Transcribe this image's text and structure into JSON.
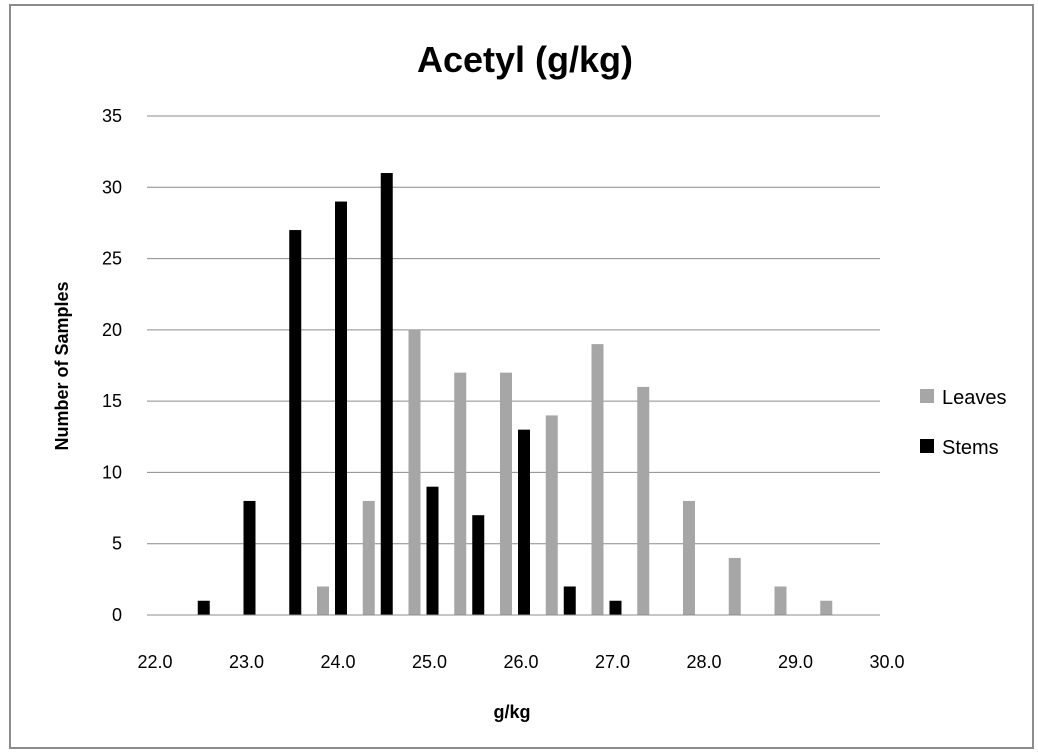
{
  "chart_data": {
    "type": "bar",
    "title": "Acetyl (g/kg)",
    "xlabel": "g/kg",
    "ylabel": "Number  of Samples",
    "ylim": [
      0,
      35
    ],
    "yticks": [
      "0",
      "5",
      "10",
      "15",
      "20",
      "25",
      "30",
      "35"
    ],
    "xlim": [
      22.0,
      30.0
    ],
    "xticks": [
      "22.0",
      "23.0",
      "24.0",
      "25.0",
      "26.0",
      "27.0",
      "28.0",
      "29.0",
      "30.0"
    ],
    "grid": "horizontal",
    "legend_position": "right",
    "series": [
      {
        "name": "Leaves",
        "color": "#a6a6a6",
        "x": [
          22.5,
          23.0,
          23.5,
          24.0,
          24.5,
          25.0,
          25.5,
          26.0,
          26.5,
          27.0,
          27.5,
          28.0,
          28.5,
          29.0,
          29.5
        ],
        "values": [
          0,
          0,
          0,
          2,
          8,
          20,
          17,
          17,
          14,
          19,
          16,
          8,
          4,
          2,
          1
        ]
      },
      {
        "name": "Stems",
        "color": "#000000",
        "x": [
          22.5,
          23.0,
          23.5,
          24.0,
          24.5,
          25.0,
          25.5,
          26.0,
          26.5,
          27.0,
          27.5,
          28.0,
          28.5,
          29.0,
          29.5
        ],
        "values": [
          1,
          8,
          27,
          29,
          31,
          9,
          7,
          13,
          2,
          1,
          0,
          0,
          0,
          0,
          0
        ]
      }
    ]
  }
}
